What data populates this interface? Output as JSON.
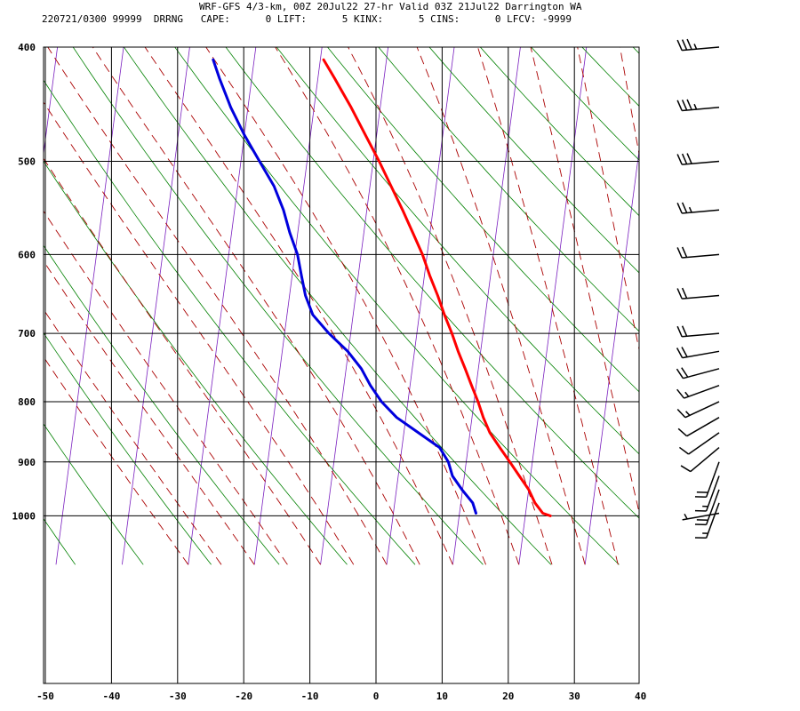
{
  "header": {
    "title": "WRF-GFS 4/3-km, 00Z 20Jul22 27-hr Valid 03Z 21Jul22 Darrington WA",
    "info": "220721/0300 99999  DRRNG   CAPE:      0 LIFT:      5 KINX:      5 CINS:      0 LFCV: -9999"
  },
  "chart_data": {
    "type": "line",
    "chart_kind": "skew-T log-P sounding",
    "x_ticks": [
      -50,
      -40,
      -30,
      -20,
      -10,
      0,
      10,
      20,
      30,
      40
    ],
    "y_ticks": [
      400,
      500,
      600,
      700,
      800,
      900,
      1000
    ],
    "xlim": [
      -50,
      40
    ],
    "ylim": [
      1050,
      400
    ],
    "y_scale": "log",
    "grid": true,
    "colors": {
      "temperature": "#ff0000",
      "dewpoint": "#0000dd",
      "isotherm": "#7a1fbf",
      "dry_adiabat": "#008000",
      "moist_adiabat": "#aa0000",
      "grid": "#000000"
    },
    "series": [
      {
        "key": "temperature",
        "points": [
          [
            1000,
            23.8
          ],
          [
            995,
            22.6
          ],
          [
            975,
            21.2
          ],
          [
            950,
            20.0
          ],
          [
            925,
            18.3
          ],
          [
            900,
            16.6
          ],
          [
            875,
            14.8
          ],
          [
            850,
            13.0
          ],
          [
            825,
            11.7
          ],
          [
            800,
            10.6
          ],
          [
            775,
            9.3
          ],
          [
            750,
            8.0
          ],
          [
            725,
            6.6
          ],
          [
            700,
            5.3
          ],
          [
            675,
            3.8
          ],
          [
            650,
            2.4
          ],
          [
            625,
            0.8
          ],
          [
            600,
            -0.7
          ],
          [
            575,
            -2.6
          ],
          [
            550,
            -4.6
          ],
          [
            525,
            -6.8
          ],
          [
            500,
            -9.1
          ],
          [
            475,
            -11.7
          ],
          [
            450,
            -14.4
          ],
          [
            425,
            -17.5
          ],
          [
            410,
            -19.5
          ]
        ]
      },
      {
        "key": "dewpoint",
        "points": [
          [
            995,
            12.5
          ],
          [
            975,
            11.8
          ],
          [
            950,
            9.9
          ],
          [
            925,
            8.2
          ],
          [
            900,
            7.3
          ],
          [
            875,
            5.7
          ],
          [
            850,
            2.2
          ],
          [
            825,
            -1.4
          ],
          [
            800,
            -4.0
          ],
          [
            775,
            -6.0
          ],
          [
            750,
            -7.7
          ],
          [
            725,
            -10.1
          ],
          [
            700,
            -13.3
          ],
          [
            675,
            -16.1
          ],
          [
            650,
            -17.6
          ],
          [
            625,
            -18.6
          ],
          [
            600,
            -19.6
          ],
          [
            575,
            -21.2
          ],
          [
            550,
            -22.6
          ],
          [
            525,
            -24.5
          ],
          [
            500,
            -27.2
          ],
          [
            475,
            -30.0
          ],
          [
            450,
            -32.6
          ],
          [
            425,
            -34.9
          ],
          [
            410,
            -36.2
          ]
        ]
      }
    ],
    "wind_barbs": [
      {
        "p": 995,
        "dir": 260,
        "spd": 5
      },
      {
        "p": 975,
        "dir": 200,
        "spd": 15
      },
      {
        "p": 950,
        "dir": 200,
        "spd": 20
      },
      {
        "p": 925,
        "dir": 200,
        "spd": 15
      },
      {
        "p": 900,
        "dir": 200,
        "spd": 20
      },
      {
        "p": 875,
        "dir": 230,
        "spd": 10
      },
      {
        "p": 850,
        "dir": 235,
        "spd": 10
      },
      {
        "p": 825,
        "dir": 240,
        "spd": 10
      },
      {
        "p": 800,
        "dir": 245,
        "spd": 15
      },
      {
        "p": 775,
        "dir": 250,
        "spd": 15
      },
      {
        "p": 750,
        "dir": 255,
        "spd": 20
      },
      {
        "p": 725,
        "dir": 260,
        "spd": 20
      },
      {
        "p": 700,
        "dir": 265,
        "spd": 20
      },
      {
        "p": 650,
        "dir": 265,
        "spd": 20
      },
      {
        "p": 600,
        "dir": 265,
        "spd": 20
      },
      {
        "p": 550,
        "dir": 265,
        "spd": 25
      },
      {
        "p": 500,
        "dir": 265,
        "spd": 30
      },
      {
        "p": 450,
        "dir": 265,
        "spd": 35
      },
      {
        "p": 400,
        "dir": 265,
        "spd": 35
      }
    ]
  }
}
